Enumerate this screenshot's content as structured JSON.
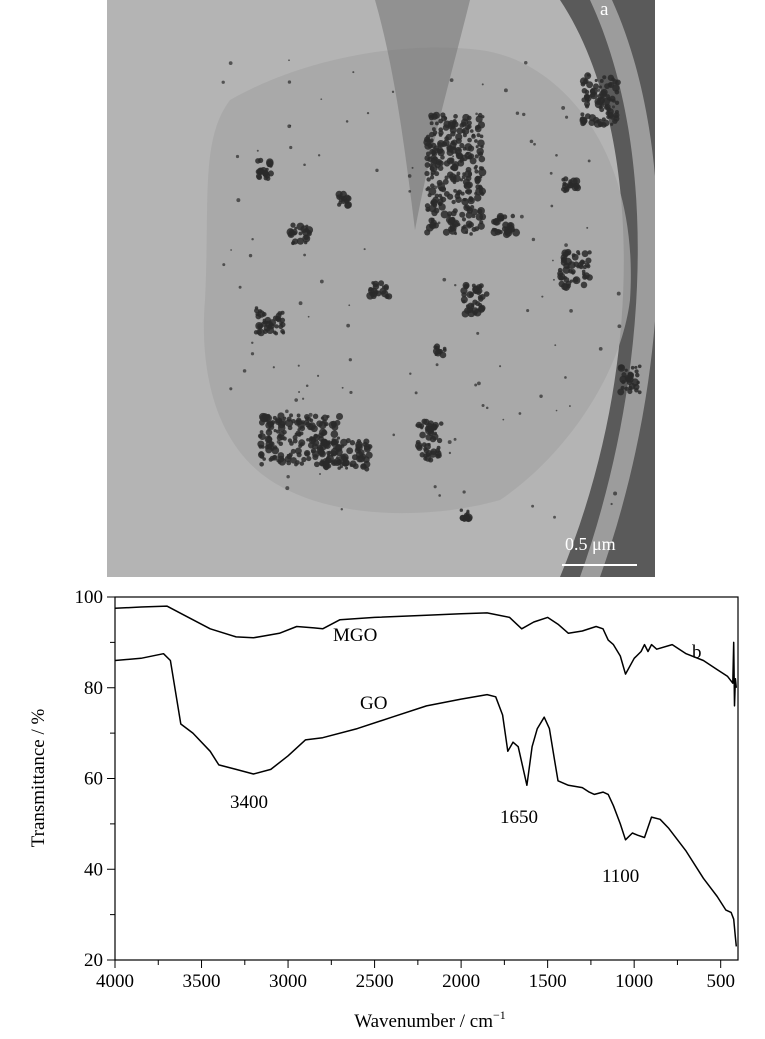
{
  "panel_a": {
    "label": "a",
    "scale_bar_label": "0.5 μm",
    "colors": {
      "background": "#b4b4b4",
      "flake": "#a6a6a6",
      "particles": "#2a2a2a",
      "edge": "#5a5a5a"
    }
  },
  "chart_data": {
    "type": "line",
    "panel_label": "b",
    "xlabel": "Wavenumber / cm",
    "xlabel_sup": "−1",
    "ylabel": "Transmittance / %",
    "xlim": [
      4000,
      400
    ],
    "ylim": [
      20,
      100
    ],
    "x_ticks": [
      4000,
      3500,
      3000,
      2500,
      2000,
      1500,
      1000,
      500
    ],
    "y_ticks": [
      20,
      40,
      60,
      80,
      100
    ],
    "grid": false,
    "series": [
      {
        "name": "MGO",
        "x": [
          4000,
          3850,
          3700,
          3600,
          3450,
          3300,
          3200,
          3050,
          2950,
          2850,
          2800,
          2700,
          2500,
          2200,
          2000,
          1850,
          1720,
          1650,
          1580,
          1500,
          1440,
          1380,
          1300,
          1220,
          1180,
          1150,
          1120,
          1080,
          1050,
          1000,
          960,
          940,
          920,
          900,
          870,
          780,
          700,
          600,
          520,
          460,
          430,
          425,
          420,
          415,
          410
        ],
        "values": [
          97.5,
          97.8,
          98,
          96,
          93,
          91.2,
          91,
          92,
          93.5,
          93.2,
          93,
          95,
          95.5,
          96,
          96.3,
          96.5,
          95.5,
          93,
          94.5,
          95.5,
          94,
          92,
          92.5,
          93.5,
          93,
          90.5,
          89.5,
          87,
          83,
          86.5,
          88,
          89.5,
          88,
          89.5,
          88.5,
          89.5,
          87.5,
          86,
          84,
          82.5,
          81,
          90,
          76,
          82,
          80
        ]
      },
      {
        "name": "GO",
        "x": [
          4000,
          3850,
          3720,
          3680,
          3620,
          3550,
          3450,
          3400,
          3300,
          3200,
          3100,
          3000,
          2900,
          2800,
          2600,
          2400,
          2200,
          2000,
          1850,
          1800,
          1760,
          1730,
          1700,
          1670,
          1620,
          1590,
          1560,
          1520,
          1490,
          1460,
          1440,
          1380,
          1300,
          1260,
          1230,
          1180,
          1150,
          1120,
          1080,
          1050,
          1010,
          980,
          940,
          900,
          850,
          800,
          700,
          600,
          520,
          470,
          440,
          425,
          415,
          410
        ],
        "values": [
          86,
          86.5,
          87.5,
          86,
          72,
          70,
          66,
          63,
          62,
          61,
          62,
          65,
          68.5,
          69,
          71,
          73.5,
          76,
          77.5,
          78.5,
          78,
          74,
          66,
          68,
          67,
          58.5,
          67,
          71,
          73.5,
          71,
          64,
          59.5,
          58.5,
          58,
          57,
          56.5,
          57,
          56.5,
          54,
          50,
          46.5,
          48,
          47.5,
          47,
          51.5,
          51,
          49,
          44,
          38,
          34,
          31,
          30.5,
          29,
          25,
          23
        ]
      }
    ],
    "annotations": [
      "3400",
      "1650",
      "1100"
    ]
  }
}
